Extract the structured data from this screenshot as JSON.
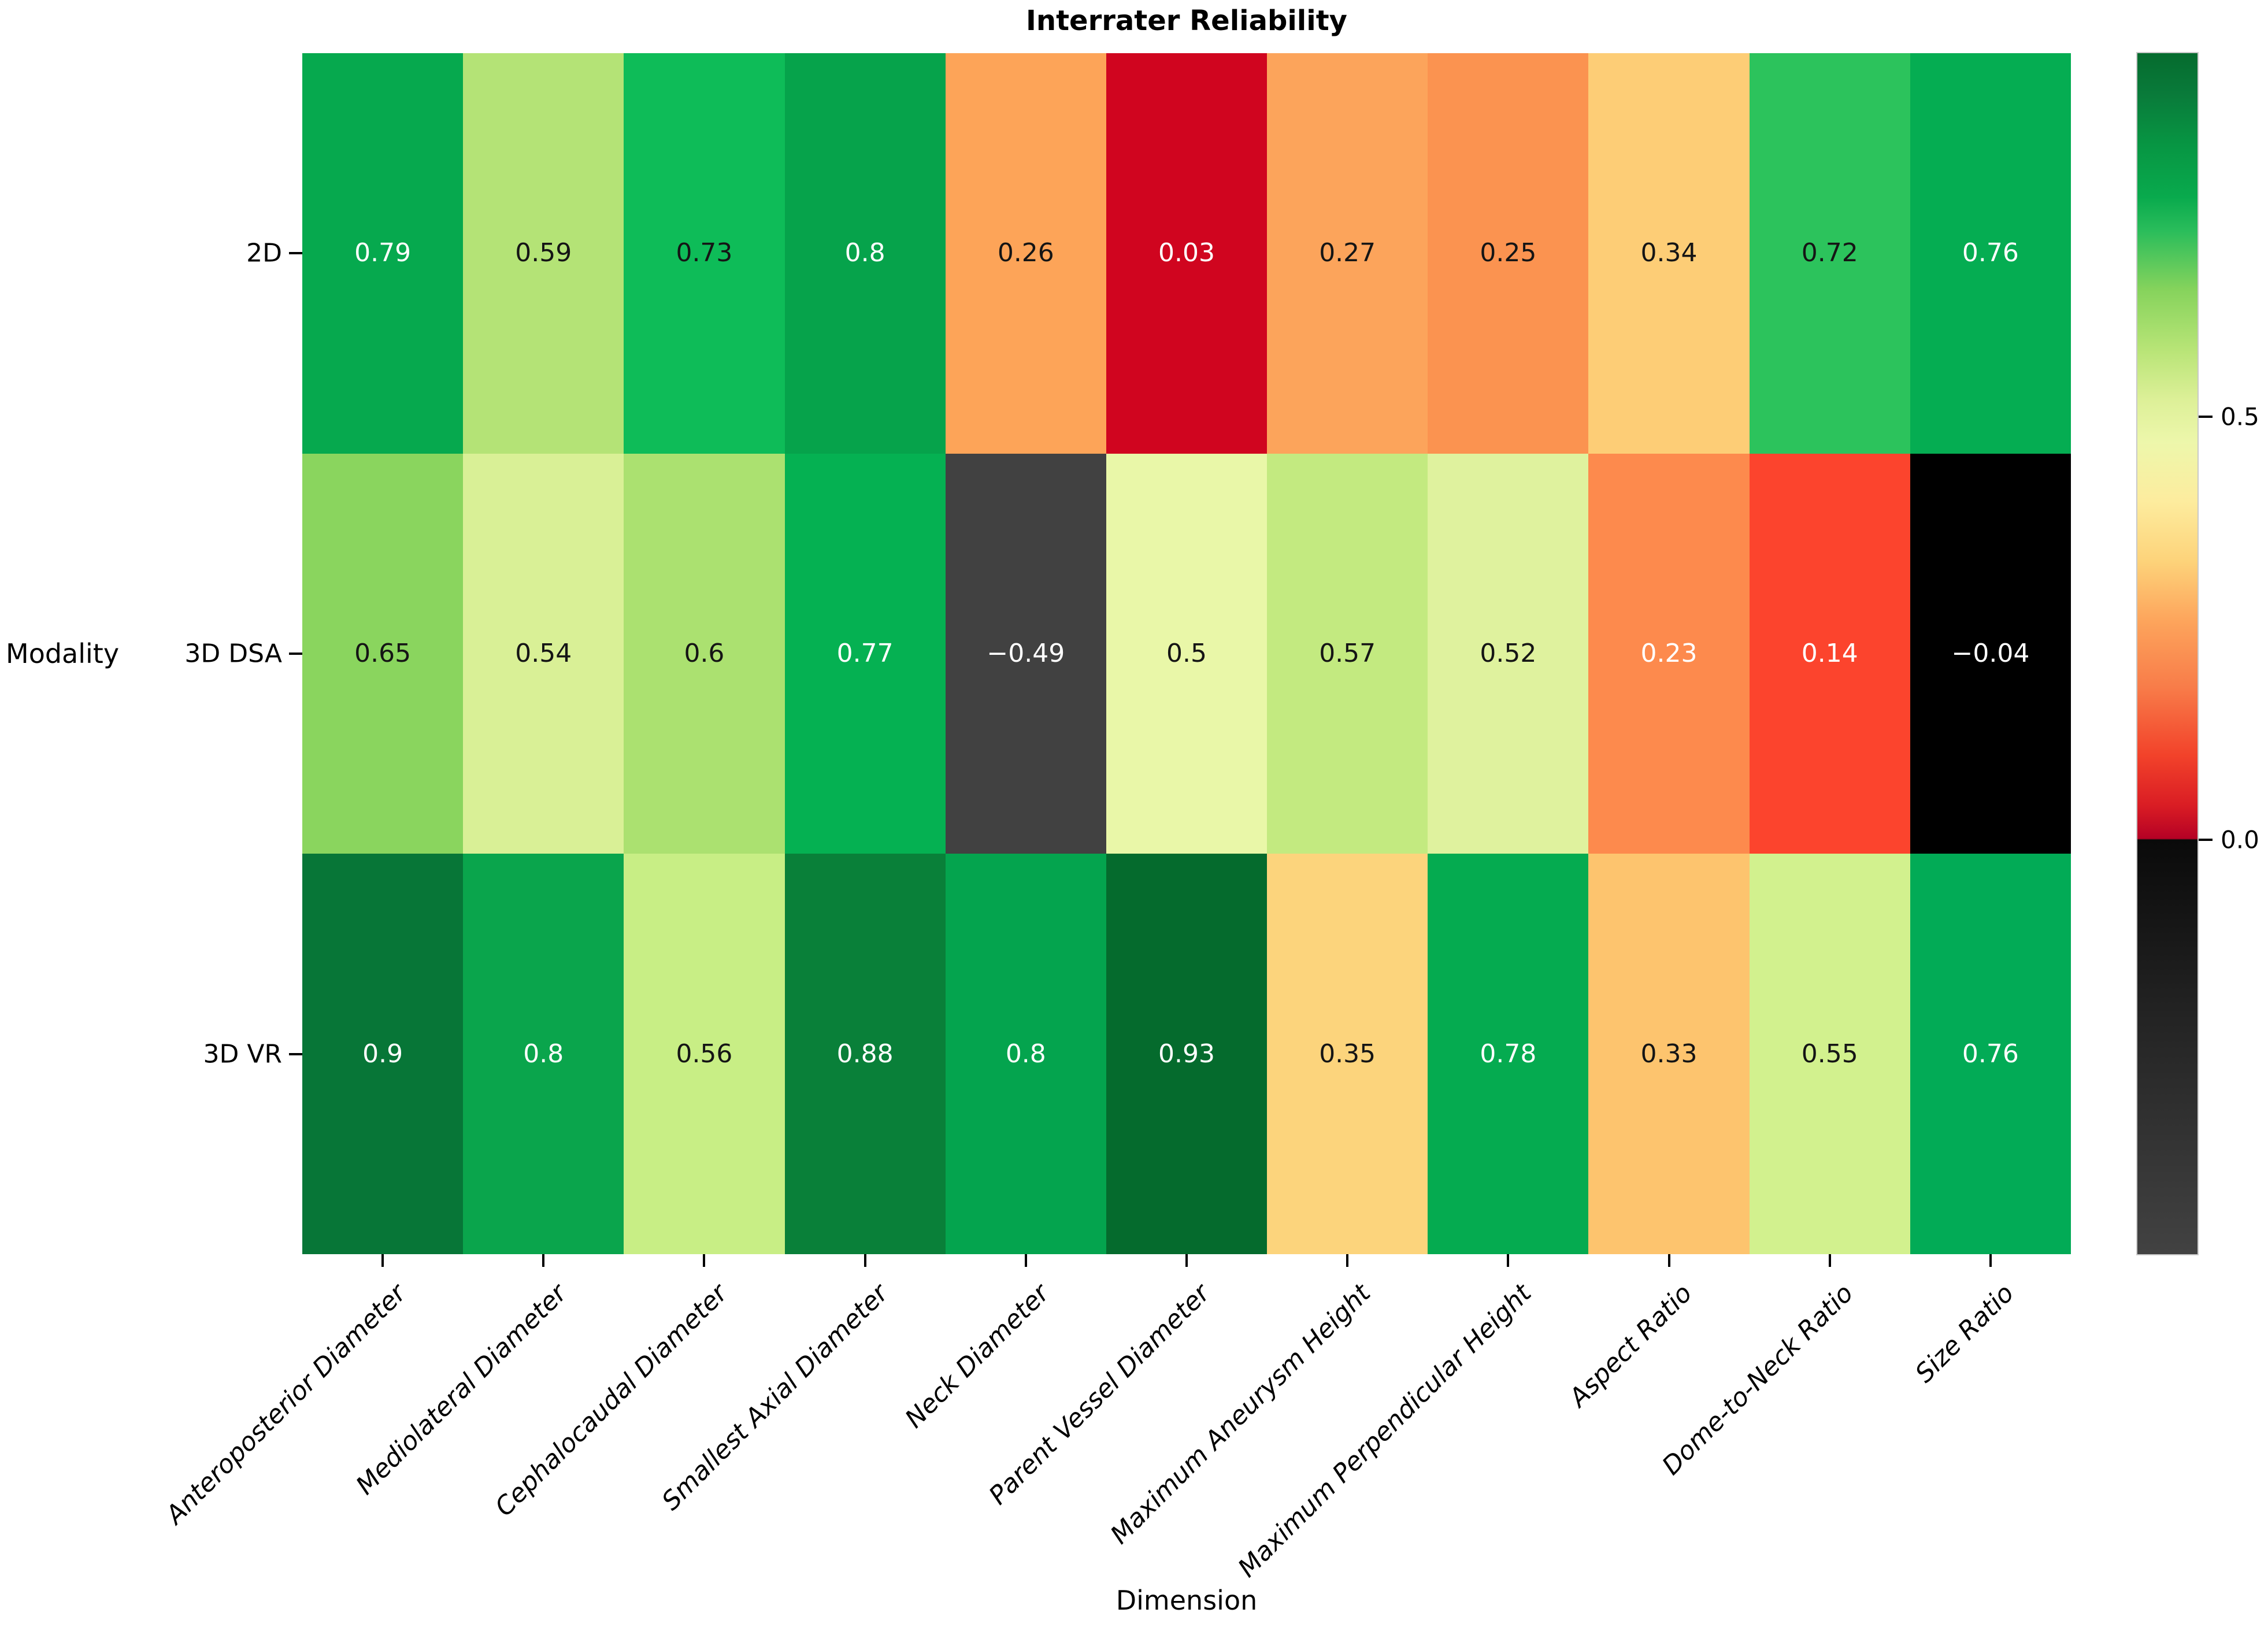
{
  "title": "Interrater Reliability",
  "xlabel": "Dimension",
  "ylabel": "Modality",
  "chart_data": {
    "type": "heatmap",
    "title": "Interrater Reliability",
    "xlabel": "Dimension",
    "ylabel": "Modality",
    "legend_position": "right",
    "rows": [
      "2D",
      "3D DSA",
      "3D VR"
    ],
    "columns": [
      "Anteroposterior Diameter",
      "Mediolateral Diameter",
      "Cephalocaudal Diameter",
      "Smallest Axial Diameter",
      "Neck Diameter",
      "Parent Vessel Diameter",
      "Maximum Aneurysm Height",
      "Maximum Perpendicular Height",
      "Aspect Ratio",
      "Dome-to-Neck Ratio",
      "Size Ratio"
    ],
    "values": [
      [
        0.79,
        0.59,
        0.73,
        0.8,
        0.26,
        0.03,
        0.27,
        0.25,
        0.34,
        0.72,
        0.76
      ],
      [
        0.65,
        0.54,
        0.6,
        0.77,
        -0.49,
        0.5,
        0.57,
        0.52,
        0.23,
        0.14,
        -0.04
      ],
      [
        0.9,
        0.8,
        0.56,
        0.88,
        0.8,
        0.93,
        0.35,
        0.78,
        0.33,
        0.55,
        0.76
      ]
    ],
    "value_labels": [
      [
        "0.79",
        "0.59",
        "0.73",
        "0.8",
        "0.26",
        "0.03",
        "0.27",
        "0.25",
        "0.34",
        "0.72",
        "0.76"
      ],
      [
        "0.65",
        "0.54",
        "0.6",
        "0.77",
        "−0.49",
        "0.5",
        "0.57",
        "0.52",
        "0.23",
        "0.14",
        "−0.04"
      ],
      [
        "0.9",
        "0.8",
        "0.56",
        "0.88",
        "0.8",
        "0.93",
        "0.35",
        "0.78",
        "0.33",
        "0.55",
        "0.76"
      ]
    ],
    "cell_colors": [
      [
        "#06a94e",
        "#b4e376",
        "#0ebc58",
        "#06a34b",
        "#fda458",
        "#d0051f",
        "#fca45b",
        "#fb9350",
        "#fdcd76",
        "#2cc35c",
        "#05ad52"
      ],
      [
        "#8ad55e",
        "#d9f096",
        "#abe170",
        "#05b152",
        "#414141",
        "#e9f7a8",
        "#c3ea80",
        "#dff29e",
        "#fd8a4d",
        "#fc442d",
        "#000000"
      ],
      [
        "#077637",
        "#0aa54c",
        "#c8ee85",
        "#098039",
        "#04a44e",
        "#056b2d",
        "#fcd47c",
        "#05ab50",
        "#fdc46e",
        "#d2f18e",
        "#02ab56"
      ]
    ],
    "cell_text_tone": [
      [
        "light",
        "dark",
        "dark",
        "light",
        "dark",
        "light",
        "dark",
        "dark",
        "dark",
        "dark",
        "light"
      ],
      [
        "dark",
        "dark",
        "dark",
        "light",
        "light",
        "dark",
        "dark",
        "dark",
        "light",
        "light",
        "light"
      ],
      [
        "light",
        "light",
        "dark",
        "light",
        "light",
        "light",
        "dark",
        "light",
        "dark",
        "dark",
        "light"
      ]
    ],
    "annot_colors": {
      "dark": "#151515",
      "light": "#ffffff"
    },
    "colorbar": {
      "vmin": -0.49,
      "vmax": 0.93,
      "ticks": [
        {
          "label": "0.5",
          "value": 0.5
        },
        {
          "label": "0.0",
          "value": 0.0
        }
      ],
      "gradient": [
        {
          "pos": 0.0,
          "color": "#056b2e"
        },
        {
          "pos": 0.035,
          "color": "#097b3a"
        },
        {
          "pos": 0.077,
          "color": "#079643"
        },
        {
          "pos": 0.12,
          "color": "#09aa4d"
        },
        {
          "pos": 0.148,
          "color": "#2abd5b"
        },
        {
          "pos": 0.197,
          "color": "#86d35c"
        },
        {
          "pos": 0.246,
          "color": "#b7e476"
        },
        {
          "pos": 0.289,
          "color": "#ddf098"
        },
        {
          "pos": 0.324,
          "color": "#edf7ab"
        },
        {
          "pos": 0.373,
          "color": "#fdec9e"
        },
        {
          "pos": 0.423,
          "color": "#fdd37a"
        },
        {
          "pos": 0.472,
          "color": "#fda55c"
        },
        {
          "pos": 0.528,
          "color": "#f87c49"
        },
        {
          "pos": 0.585,
          "color": "#f2422a"
        },
        {
          "pos": 0.627,
          "color": "#d91c24"
        },
        {
          "pos": 0.654,
          "color": "#b50125"
        },
        {
          "pos": 0.655,
          "color": "#0a0a0a"
        },
        {
          "pos": 0.8,
          "color": "#232323"
        },
        {
          "pos": 1.0,
          "color": "#424242"
        }
      ]
    }
  }
}
